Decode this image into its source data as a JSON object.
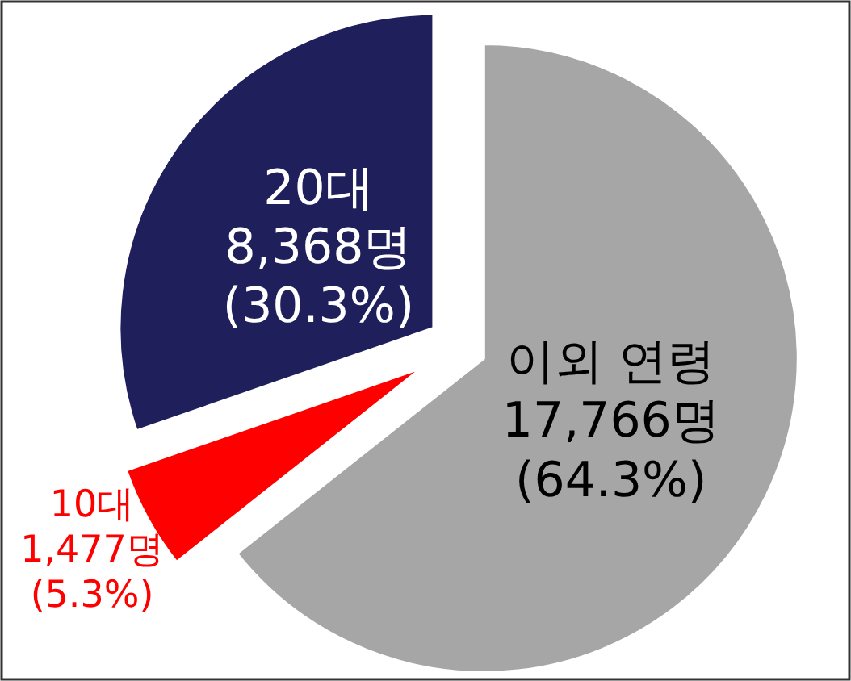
{
  "chart_data": {
    "type": "pie",
    "categories": [
      "이외 연령",
      "10대",
      "20대"
    ],
    "values": [
      17766,
      1477,
      8368
    ],
    "value_labels": [
      "17,766명 (64.3%)",
      "1,477명 (5.3%)",
      "8,368명 (30.3%)"
    ],
    "colors": [
      "#a6a6a6",
      "#ff0000",
      "#1f1f5c"
    ]
  }
}
